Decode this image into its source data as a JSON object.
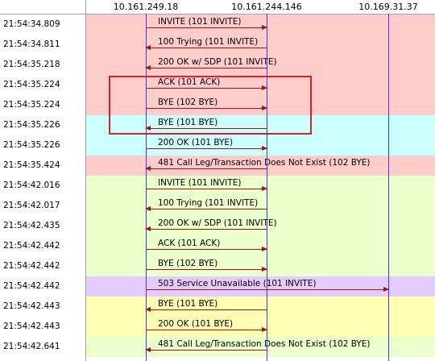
{
  "header": {
    "ips": [
      "10.161.249.18",
      "10.161.244.146",
      "10.169.31.37"
    ]
  },
  "colors": {
    "pink": "#ffcccc",
    "cyan": "#ccffff",
    "green": "#eaffcc",
    "purple": "#e3ccff",
    "yellow": "#ffffb3",
    "arrow": "#a31515",
    "lifeline": "#3b3bd6",
    "highlight": "#e02020"
  },
  "rows": [
    {
      "time": "21:54:34.809",
      "label": "INVITE (101 INVITE)",
      "color": "pink",
      "from": 0,
      "to": 1
    },
    {
      "time": "21:54:34.811",
      "label": "100 Trying (101 INVITE)",
      "color": "pink",
      "from": 1,
      "to": 0
    },
    {
      "time": "21:54:35.218",
      "label": "200 OK w/ SDP (101 INVITE)",
      "color": "pink",
      "from": 1,
      "to": 0
    },
    {
      "time": "21:54:35.224",
      "label": "ACK (101 ACK)",
      "color": "pink",
      "from": 0,
      "to": 1
    },
    {
      "time": "21:54:35.224",
      "label": "BYE (102 BYE)",
      "color": "pink",
      "from": 0,
      "to": 1
    },
    {
      "time": "21:54:35.226",
      "label": "BYE (101 BYE)",
      "color": "cyan",
      "from": 1,
      "to": 0
    },
    {
      "time": "21:54:35.226",
      "label": "200 OK (101 BYE)",
      "color": "cyan",
      "from": 0,
      "to": 1
    },
    {
      "time": "21:54:35.424",
      "label": "481 Call Leg/Transaction Does Not Exist (102 BYE)",
      "color": "pink",
      "from": 1,
      "to": 0
    },
    {
      "time": "21:54:42.016",
      "label": "INVITE (101 INVITE)",
      "color": "green",
      "from": 0,
      "to": 1
    },
    {
      "time": "21:54:42.017",
      "label": "100 Trying (101 INVITE)",
      "color": "green",
      "from": 1,
      "to": 0
    },
    {
      "time": "21:54:42.435",
      "label": "200 OK w/ SDP (101 INVITE)",
      "color": "green",
      "from": 1,
      "to": 0
    },
    {
      "time": "21:54:42.442",
      "label": "ACK (101 ACK)",
      "color": "green",
      "from": 0,
      "to": 1
    },
    {
      "time": "21:54:42.442",
      "label": "BYE (102 BYE)",
      "color": "green",
      "from": 0,
      "to": 1
    },
    {
      "time": "21:54:42.442",
      "label": "503 Service Unavailable (101 INVITE)",
      "color": "purple",
      "from": 0,
      "to": 2
    },
    {
      "time": "21:54:42.443",
      "label": "BYE (101 BYE)",
      "color": "yellow",
      "from": 1,
      "to": 0
    },
    {
      "time": "21:54:42.443",
      "label": "200 OK (101 BYE)",
      "color": "yellow",
      "from": 0,
      "to": 1
    },
    {
      "time": "21:54:42.641",
      "label": "481 Call Leg/Transaction Does Not Exist (102 BYE)",
      "color": "green",
      "from": 1,
      "to": 0
    }
  ]
}
